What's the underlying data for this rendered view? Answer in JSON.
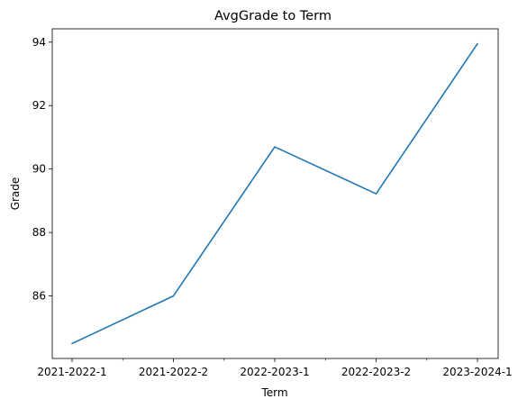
{
  "chart_data": {
    "type": "line",
    "title": "AvgGrade to Term",
    "xlabel": "Term",
    "ylabel": "Grade",
    "categories": [
      "2021-2022-1",
      "2021-2022-2",
      "2022-2023-1",
      "2022-2023-2",
      "2023-2024-1"
    ],
    "series": [
      {
        "values": [
          84.5,
          86.0,
          90.7,
          89.22,
          93.95
        ]
      }
    ],
    "yticks": [
      86,
      88,
      90,
      92,
      94
    ],
    "ylim": [
      84.03,
      94.42
    ],
    "grid": false,
    "colors": {
      "line": "#1f77b4"
    }
  }
}
